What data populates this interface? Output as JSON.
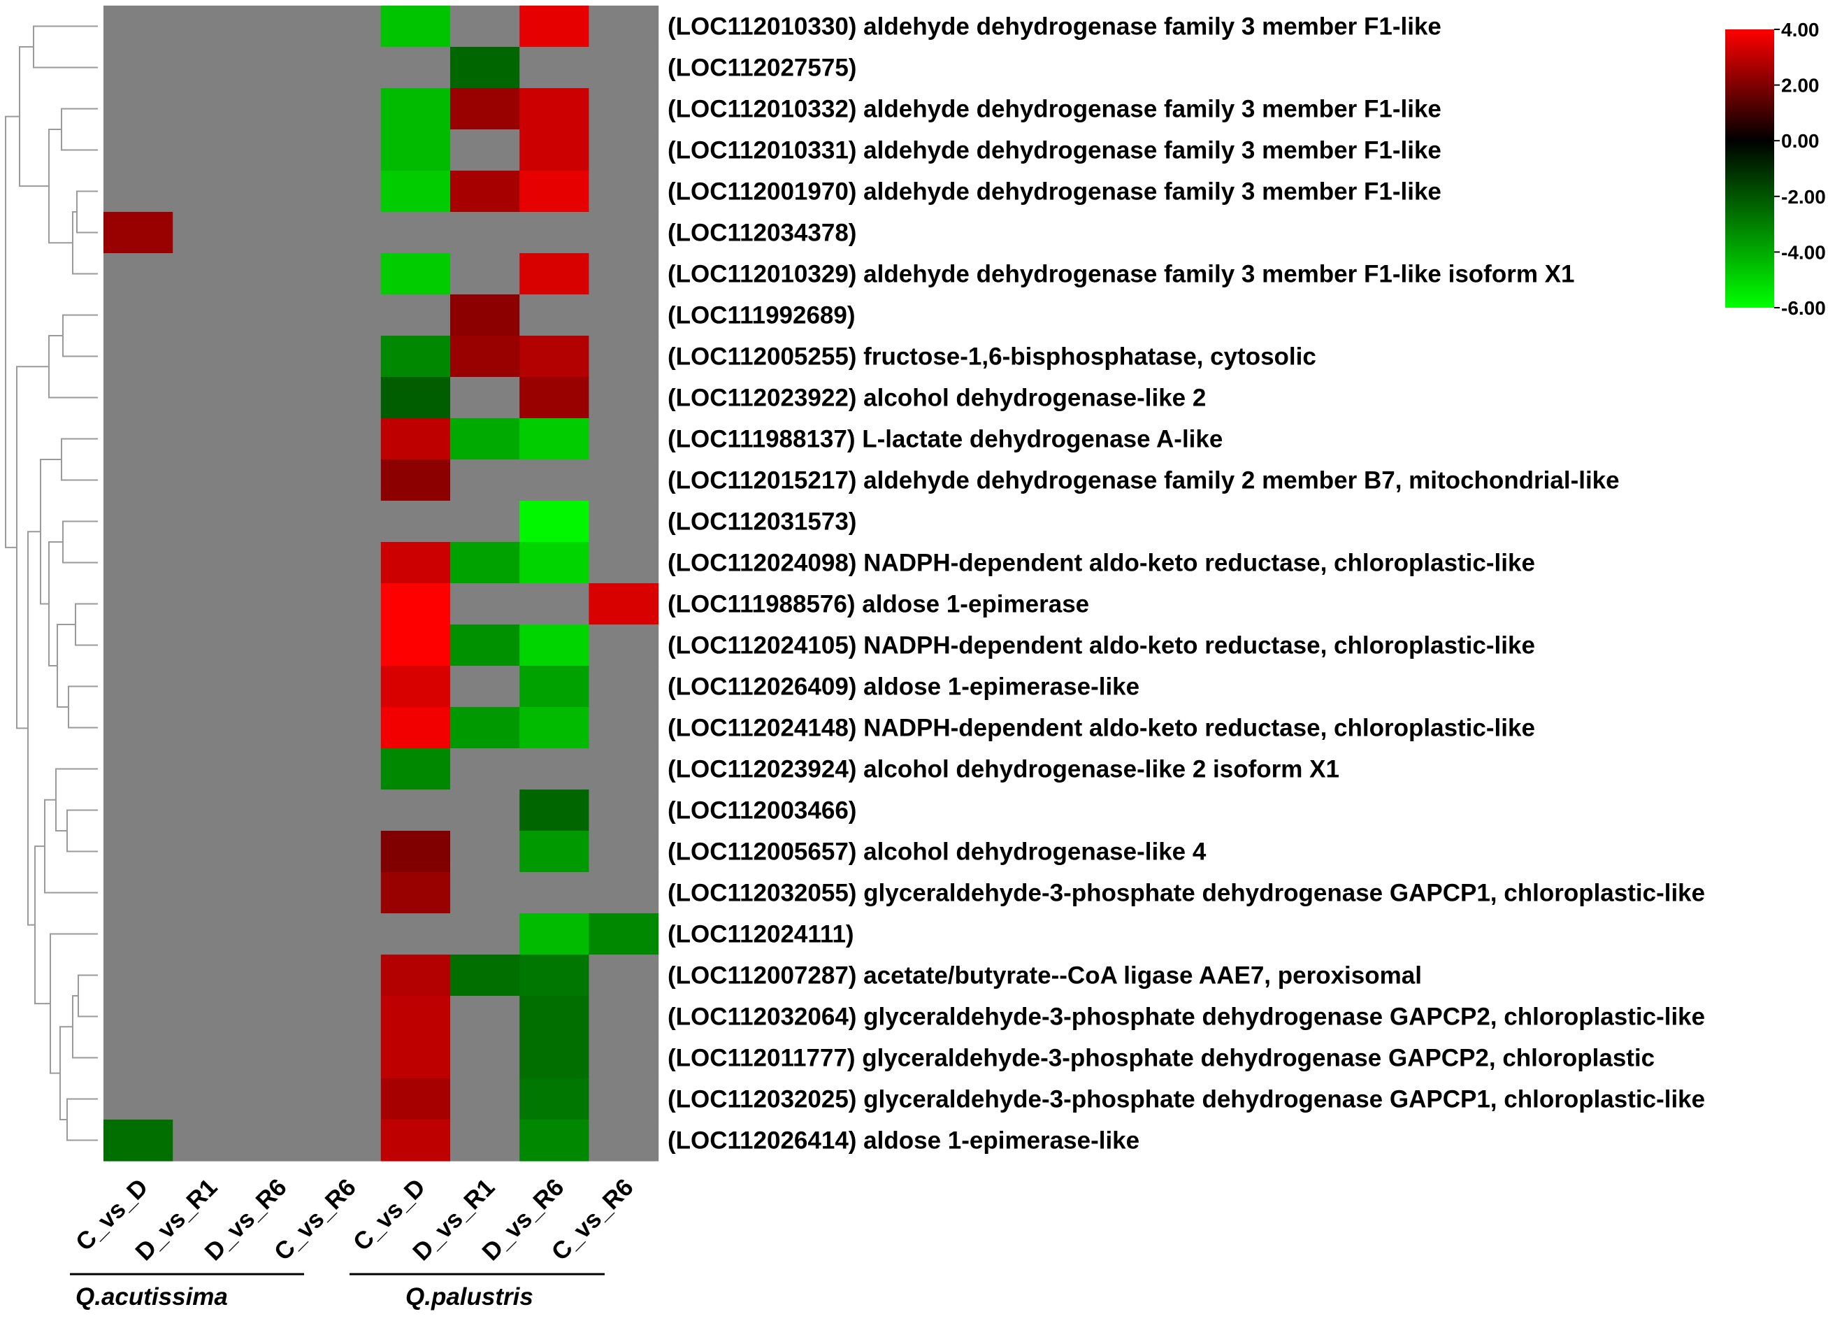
{
  "chart_data": {
    "type": "heatmap",
    "columns": [
      "C_vs_D",
      "D_vs_R1",
      "D_vs_R6",
      "C_vs_R6",
      "C_vs_D",
      "D_vs_R1",
      "D_vs_R6",
      "C_vs_R6"
    ],
    "groups": [
      {
        "name": "Q.acutissima",
        "columns": [
          0,
          1,
          2,
          3
        ]
      },
      {
        "name": "Q.palustris",
        "columns": [
          4,
          5,
          6,
          7
        ]
      }
    ],
    "rows": [
      {
        "label": "(LOC112010330) aldehyde dehydrogenase family 3 member F1-like",
        "values": [
          null,
          null,
          null,
          null,
          -4.6,
          null,
          3.6,
          null
        ]
      },
      {
        "label": "(LOC112027575)",
        "values": [
          null,
          null,
          null,
          null,
          null,
          -2.4,
          null,
          null
        ]
      },
      {
        "label": "(LOC112010332) aldehyde dehydrogenase family 3 member F1-like",
        "values": [
          null,
          null,
          null,
          null,
          -4.4,
          2.4,
          3.2,
          null
        ]
      },
      {
        "label": "(LOC112010331) aldehyde dehydrogenase family 3 member F1-like",
        "values": [
          null,
          null,
          null,
          null,
          -4.4,
          null,
          3.2,
          null
        ]
      },
      {
        "label": "(LOC112001970) aldehyde dehydrogenase family 3 member F1-like",
        "values": [
          null,
          null,
          null,
          null,
          -4.8,
          2.6,
          3.6,
          null
        ]
      },
      {
        "label": "(LOC112034378)",
        "values": [
          2.4,
          null,
          null,
          null,
          null,
          null,
          null,
          null
        ]
      },
      {
        "label": "(LOC112010329) aldehyde dehydrogenase family 3 member F1-like isoform X1",
        "values": [
          null,
          null,
          null,
          null,
          -4.8,
          null,
          3.4,
          null
        ]
      },
      {
        "label": "(LOC111992689)",
        "values": [
          null,
          null,
          null,
          null,
          null,
          2.2,
          null,
          null
        ]
      },
      {
        "label": "(LOC112005255) fructose-1,6-bisphosphatase, cytosolic",
        "values": [
          null,
          null,
          null,
          null,
          -3.2,
          2.4,
          2.8,
          null
        ]
      },
      {
        "label": "(LOC112023922) alcohol dehydrogenase-like 2",
        "values": [
          null,
          null,
          null,
          null,
          -2.2,
          null,
          2.4,
          null
        ]
      },
      {
        "label": "(LOC111988137) L-lactate dehydrogenase A-like",
        "values": [
          null,
          null,
          null,
          null,
          3.0,
          -4.0,
          -4.8,
          null
        ]
      },
      {
        "label": "(LOC112015217) aldehyde dehydrogenase family 2 member B7, mitochondrial-like",
        "values": [
          null,
          null,
          null,
          null,
          2.2,
          null,
          null,
          null
        ]
      },
      {
        "label": "(LOC112031573)",
        "values": [
          null,
          null,
          null,
          null,
          null,
          null,
          -5.8,
          null
        ]
      },
      {
        "label": "(LOC112024098) NADPH-dependent aldo-keto reductase, chloroplastic-like",
        "values": [
          null,
          null,
          null,
          null,
          3.2,
          -3.8,
          -5.0,
          null
        ]
      },
      {
        "label": "(LOC111988576) aldose 1-epimerase",
        "values": [
          null,
          null,
          null,
          null,
          4.0,
          null,
          null,
          3.4
        ]
      },
      {
        "label": "(LOC112024105) NADPH-dependent aldo-keto reductase, chloroplastic-like",
        "values": [
          null,
          null,
          null,
          null,
          4.0,
          -3.4,
          -5.0,
          null
        ]
      },
      {
        "label": "(LOC112026409) aldose 1-epimerase-like",
        "values": [
          null,
          null,
          null,
          null,
          3.4,
          null,
          -3.8,
          null
        ]
      },
      {
        "label": "(LOC112024148) NADPH-dependent aldo-keto reductase, chloroplastic-like",
        "values": [
          null,
          null,
          null,
          null,
          3.8,
          -3.6,
          -4.4,
          null
        ]
      },
      {
        "label": "(LOC112023924) alcohol dehydrogenase-like 2 isoform X1",
        "values": [
          null,
          null,
          null,
          null,
          -3.2,
          null,
          null,
          null
        ]
      },
      {
        "label": "(LOC112003466)",
        "values": [
          null,
          null,
          null,
          null,
          null,
          null,
          -2.4,
          null
        ]
      },
      {
        "label": "(LOC112005657) alcohol dehydrogenase-like 4",
        "values": [
          null,
          null,
          null,
          null,
          2.0,
          null,
          -3.6,
          null
        ]
      },
      {
        "label": "(LOC112032055) glyceraldehyde-3-phosphate dehydrogenase GAPCP1, chloroplastic-like",
        "values": [
          null,
          null,
          null,
          null,
          2.4,
          null,
          null,
          null
        ]
      },
      {
        "label": "(LOC112024111)",
        "values": [
          null,
          null,
          null,
          null,
          null,
          null,
          -4.4,
          -3.2
        ]
      },
      {
        "label": "(LOC112007287) acetate/butyrate--CoA ligase AAE7, peroxisomal",
        "values": [
          null,
          null,
          null,
          null,
          2.8,
          -2.6,
          -2.8,
          null
        ]
      },
      {
        "label": "(LOC112032064) glyceraldehyde-3-phosphate dehydrogenase GAPCP2, chloroplastic-like",
        "values": [
          null,
          null,
          null,
          null,
          3.0,
          null,
          -2.6,
          null
        ]
      },
      {
        "label": "(LOC112011777) glyceraldehyde-3-phosphate dehydrogenase GAPCP2, chloroplastic",
        "values": [
          null,
          null,
          null,
          null,
          3.0,
          null,
          -2.6,
          null
        ]
      },
      {
        "label": "(LOC112032025) glyceraldehyde-3-phosphate dehydrogenase GAPCP1, chloroplastic-like",
        "values": [
          null,
          null,
          null,
          null,
          2.6,
          null,
          -2.8,
          null
        ]
      },
      {
        "label": "(LOC112026414) aldose 1-epimerase-like",
        "values": [
          -2.6,
          null,
          null,
          null,
          3.0,
          null,
          -3.2,
          null
        ]
      }
    ],
    "missing_color": "#808080",
    "color_scale": {
      "min": -6.0,
      "max": 4.0,
      "stops": [
        {
          "value": -6.0,
          "color": "#00ff00"
        },
        {
          "value": 0.0,
          "color": "#000000"
        },
        {
          "value": 4.0,
          "color": "#ff0000"
        }
      ],
      "tick_labels": [
        "4.00",
        "2.00",
        "0.00",
        "-2.00",
        "-4.00",
        "-6.00"
      ],
      "placement": "top-right"
    },
    "dendrogram": "rows",
    "title": "",
    "xlabel": "",
    "ylabel": ""
  }
}
